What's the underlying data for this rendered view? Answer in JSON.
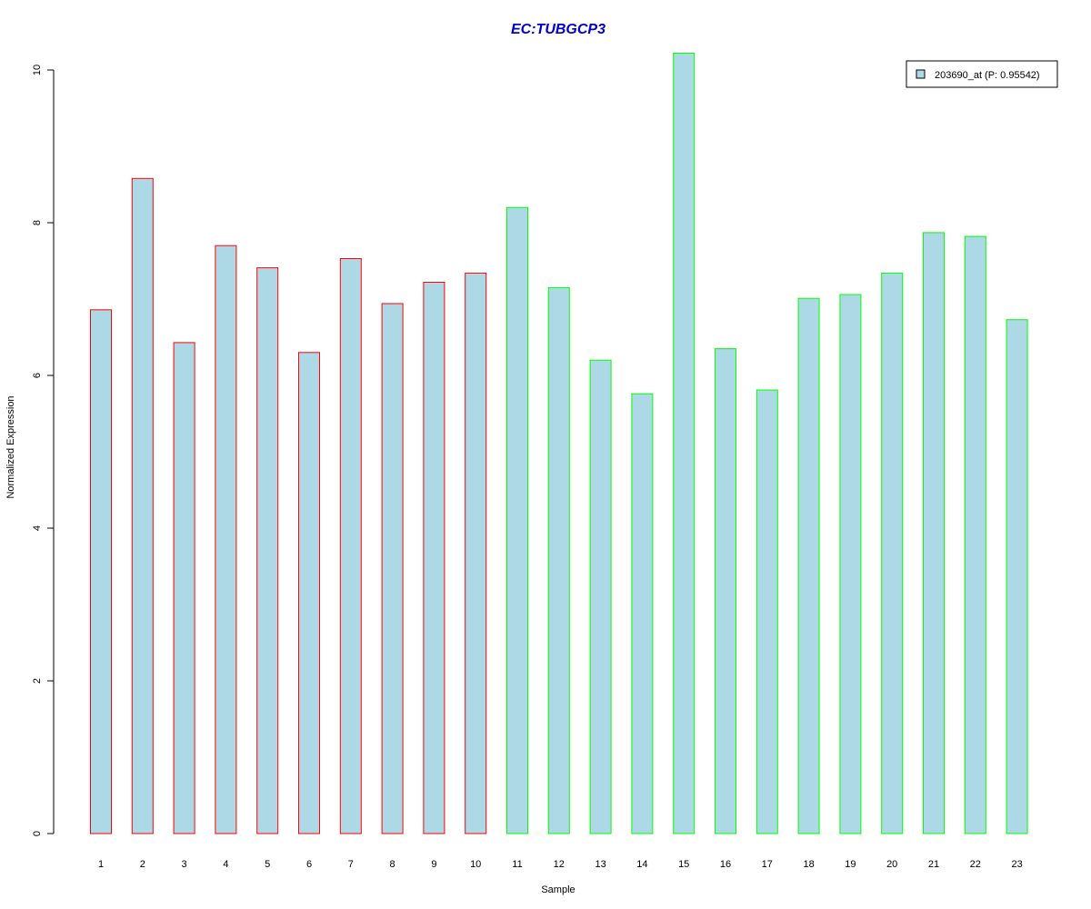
{
  "chart_data": {
    "type": "bar",
    "title": "EC:TUBGCP3",
    "xlabel": "Sample",
    "ylabel": "Normalized Expression",
    "categories": [
      "1",
      "2",
      "3",
      "4",
      "5",
      "6",
      "7",
      "8",
      "9",
      "10",
      "11",
      "12",
      "13",
      "14",
      "15",
      "16",
      "17",
      "18",
      "19",
      "20",
      "21",
      "22",
      "23"
    ],
    "series": [
      {
        "name": "203690_at (P: 0.95542)",
        "values": [
          6.86,
          8.58,
          6.43,
          7.7,
          7.41,
          6.3,
          7.53,
          6.94,
          7.22,
          7.34,
          8.2,
          7.15,
          6.2,
          5.76,
          10.22,
          6.35,
          5.81,
          7.01,
          7.06,
          7.34,
          7.87,
          7.82,
          6.73
        ]
      }
    ],
    "groups": [
      1,
      1,
      1,
      1,
      1,
      1,
      1,
      1,
      1,
      1,
      2,
      2,
      2,
      2,
      2,
      2,
      2,
      2,
      2,
      2,
      2,
      2,
      2
    ],
    "yticks": [
      "0",
      "2",
      "4",
      "6",
      "8",
      "10"
    ],
    "ylim": [
      0,
      10.3
    ],
    "grid": false,
    "legend_position": "top-right"
  },
  "colors": {
    "title": "#0000CC",
    "bar_fill": "#ADD8E6",
    "group1_border": "#FF0000",
    "group2_border": "#00FF00",
    "axis": "#000000"
  }
}
